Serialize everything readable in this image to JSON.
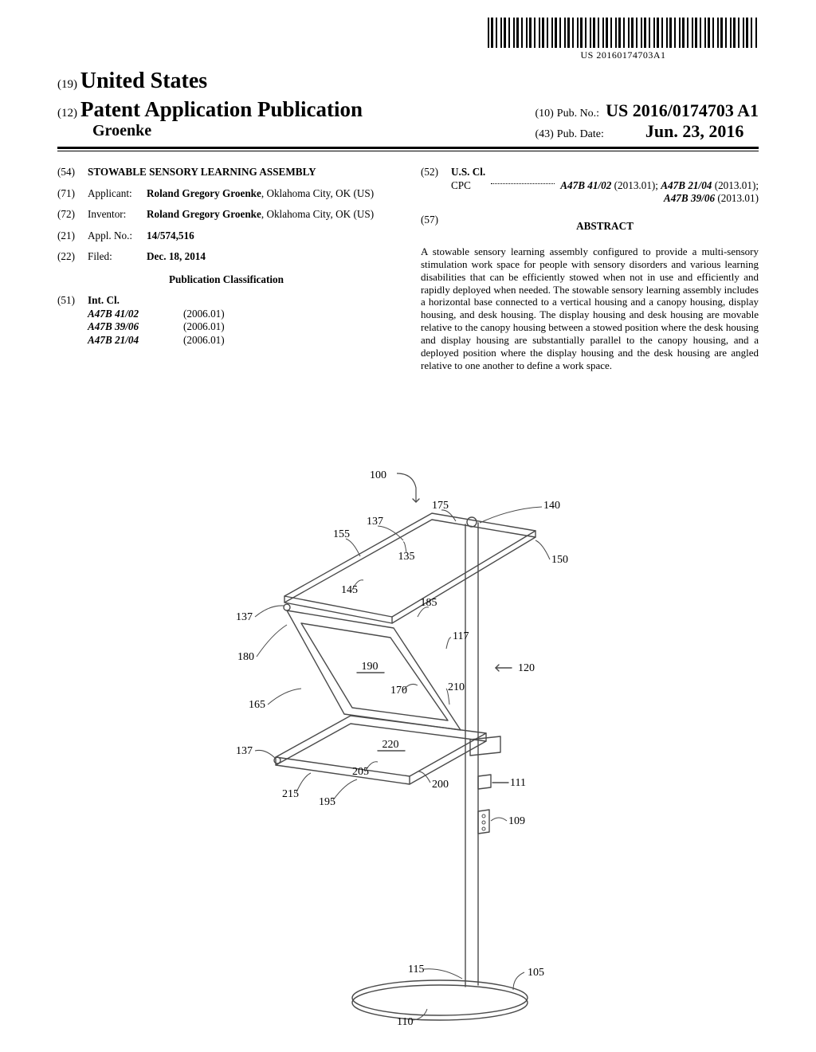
{
  "barcode": {
    "text": "US 20160174703A1"
  },
  "header": {
    "code_country": "(19)",
    "country": "United States",
    "code_pubtype": "(12)",
    "pub_type": "Patent Application Publication",
    "inventor_surname": "Groenke",
    "code_pubno": "(10)",
    "pubno_label": "Pub. No.:",
    "pub_no": "US 2016/0174703 A1",
    "code_pubdate": "(43)",
    "pubdate_label": "Pub. Date:",
    "pub_date": "Jun. 23, 2016"
  },
  "left": {
    "f54": {
      "code": "(54)",
      "title": "STOWABLE SENSORY LEARNING ASSEMBLY"
    },
    "f71": {
      "code": "(71)",
      "label": "Applicant:",
      "name": "Roland Gregory Groenke",
      "loc": ", Oklahoma City, OK (US)"
    },
    "f72": {
      "code": "(72)",
      "label": "Inventor:",
      "name": "Roland Gregory Groenke",
      "loc": ", Oklahoma City, OK (US)"
    },
    "f21": {
      "code": "(21)",
      "label": "Appl. No.:",
      "value": "14/574,516"
    },
    "f22": {
      "code": "(22)",
      "label": "Filed:",
      "value": "Dec. 18, 2014"
    },
    "class_hdr": "Publication Classification",
    "f51": {
      "code": "(51)",
      "label": "Int. Cl.",
      "rows": [
        {
          "code": "A47B 41/02",
          "ver": "(2006.01)"
        },
        {
          "code": "A47B 39/06",
          "ver": "(2006.01)"
        },
        {
          "code": "A47B 21/04",
          "ver": "(2006.01)"
        }
      ]
    }
  },
  "right": {
    "f52": {
      "code": "(52)",
      "label": "U.S. Cl.",
      "cpc_prefix": "CPC",
      "items": [
        {
          "code": "A47B 41/02",
          "ver": "(2013.01)",
          "sep": "; "
        },
        {
          "code": "A47B 21/04",
          "ver": "(2013.01)",
          "sep": "; "
        },
        {
          "code": "A47B 39/06",
          "ver": "(2013.01)",
          "sep": ""
        }
      ]
    },
    "f57": {
      "code": "(57)",
      "hdr": "ABSTRACT"
    },
    "abstract_text": "A stowable sensory learning assembly configured to provide a multi-sensory stimulation work space for people with sensory disorders and various learning disabilities that can be efficiently stowed when not in use and efficiently and rapidly deployed when needed. The stowable sensory learning assembly includes a horizontal base connected to a vertical housing and a canopy housing, display housing, and desk housing. The display housing and desk housing are movable relative to the canopy housing between a stowed position where the desk housing and display housing are substantially parallel to the canopy housing, and a deployed position where the display housing and the desk housing are angled relative to one another to define a work space."
  },
  "figure": {
    "ref_main": "100",
    "labels": [
      "100",
      "175",
      "140",
      "137",
      "155",
      "150",
      "135",
      "145",
      "185",
      "137",
      "117",
      "120",
      "180",
      "190",
      "170",
      "210",
      "165",
      "137",
      "220",
      "111",
      "205",
      "109",
      "215",
      "200",
      "195",
      "115",
      "105",
      "110"
    ],
    "stroke": "#4a4a4a",
    "stroke_w": 1.4,
    "font_size": 14
  }
}
